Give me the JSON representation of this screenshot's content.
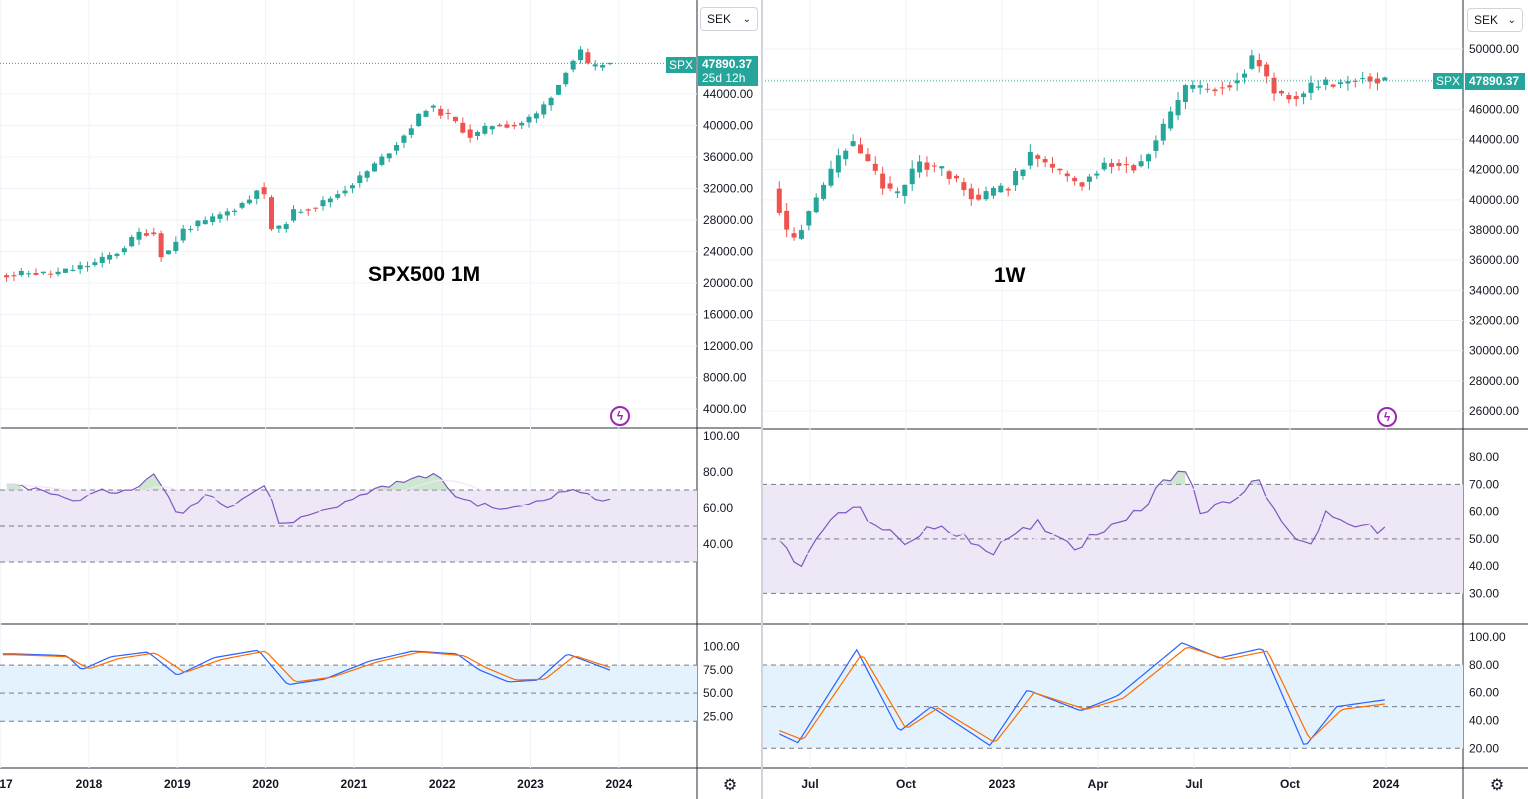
{
  "panels": [
    {
      "id": "monthly",
      "annotation": "SPX500 1M",
      "currency": "SEK",
      "symbol": "SPX",
      "last_price": "47890.37",
      "countdown": "25d 12h",
      "price_ticks": [
        "44000.00",
        "40000.00",
        "36000.00",
        "32000.00",
        "28000.00",
        "24000.00",
        "20000.00",
        "16000.00",
        "12000.00",
        "8000.00",
        "4000.00"
      ],
      "rsi_ticks": [
        "100.00",
        "80.00",
        "60.00",
        "40.00"
      ],
      "stoch_ticks": [
        "100.00",
        "75.00",
        "50.00",
        "25.00"
      ],
      "time_labels": [
        "17",
        "2018",
        "2019",
        "2020",
        "2021",
        "2022",
        "2023",
        "2024"
      ]
    },
    {
      "id": "weekly",
      "annotation": "1W",
      "currency": "SEK",
      "symbol": "SPX",
      "last_price": "47890.37",
      "price_ticks": [
        "50000.00",
        "48000.00",
        "46000.00",
        "44000.00",
        "42000.00",
        "40000.00",
        "38000.00",
        "36000.00",
        "34000.00",
        "32000.00",
        "30000.00",
        "28000.00",
        "26000.00"
      ],
      "rsi_ticks": [
        "80.00",
        "70.00",
        "60.00",
        "50.00",
        "40.00",
        "30.00"
      ],
      "stoch_ticks": [
        "100.00",
        "80.00",
        "60.00",
        "40.00",
        "20.00"
      ],
      "time_labels": [
        "Jul",
        "Oct",
        "2023",
        "Apr",
        "Jul",
        "Oct",
        "2024"
      ]
    }
  ],
  "colors": {
    "up": "#26a69a",
    "down": "#ef5350",
    "rsi_line": "#7e57c2",
    "rsi_band": "#ede7f6",
    "stoch_k": "#2962ff",
    "stoch_d": "#ff6d00",
    "stoch_band": "#e3f2fd",
    "grid": "#f0f3fa",
    "last_price_line": "#26a69a"
  },
  "chart_data": [
    {
      "type": "candlestick",
      "title": "SPX500 1M",
      "currency": "SEK",
      "ylim": [
        0,
        48500
      ],
      "x_axis": [
        "17",
        "2018",
        "2019",
        "2020",
        "2021",
        "2022",
        "2023",
        "2024"
      ],
      "close_path": [
        [
          "2017-04",
          21000
        ],
        [
          "2017-06",
          21300
        ],
        [
          "2017-09",
          21100
        ],
        [
          "2017-12",
          21800
        ],
        [
          "2018-03",
          22600
        ],
        [
          "2018-06",
          24000
        ],
        [
          "2018-09",
          26500
        ],
        [
          "2018-11",
          26300
        ],
        [
          "2018-12",
          23000
        ],
        [
          "2019-03",
          27000
        ],
        [
          "2019-06",
          27800
        ],
        [
          "2019-09",
          29100
        ],
        [
          "2019-12",
          30800
        ],
        [
          "2020-01",
          32500
        ],
        [
          "2020-02",
          30500
        ],
        [
          "2020-03",
          26000
        ],
        [
          "2020-06",
          29200
        ],
        [
          "2020-09",
          29800
        ],
        [
          "2020-12",
          31500
        ],
        [
          "2021-03",
          33500
        ],
        [
          "2021-06",
          36000
        ],
        [
          "2021-09",
          39000
        ],
        [
          "2021-12",
          42500
        ],
        [
          "2022-03",
          41000
        ],
        [
          "2022-06",
          38500
        ],
        [
          "2022-09",
          40200
        ],
        [
          "2022-12",
          40000
        ],
        [
          "2023-03",
          41500
        ],
        [
          "2023-06",
          45500
        ],
        [
          "2023-07",
          47500
        ],
        [
          "2023-09",
          49500
        ],
        [
          "2023-10",
          47000
        ],
        [
          "2023-12",
          47890
        ]
      ],
      "rsi_14": {
        "levels": [
          70,
          50,
          30
        ],
        "ylim": [
          20,
          100
        ],
        "path": [
          [
            "2017-03",
            72
          ],
          [
            "2017-07",
            70
          ],
          [
            "2017-11",
            63
          ],
          [
            "2018-02",
            70
          ],
          [
            "2018-07",
            69
          ],
          [
            "2018-10",
            80
          ],
          [
            "2018-12",
            64
          ],
          [
            "2019-01",
            55
          ],
          [
            "2019-05",
            68
          ],
          [
            "2019-08",
            61
          ],
          [
            "2020-01",
            73
          ],
          [
            "2020-03",
            50
          ],
          [
            "2020-08",
            58
          ],
          [
            "2020-12",
            63
          ],
          [
            "2021-04",
            71
          ],
          [
            "2021-08",
            75
          ],
          [
            "2021-12",
            79
          ],
          [
            "2022-03",
            66
          ],
          [
            "2022-06",
            62
          ],
          [
            "2022-10",
            59
          ],
          [
            "2023-02",
            64
          ],
          [
            "2023-07",
            71
          ],
          [
            "2023-10",
            64
          ],
          [
            "2023-12",
            66
          ]
        ]
      },
      "stochastic": {
        "levels": [
          80,
          50,
          20
        ],
        "ylim": [
          0,
          110
        ],
        "k": [
          [
            "2017-03",
            92
          ],
          [
            "2017-10",
            90
          ],
          [
            "2017-12",
            75
          ],
          [
            "2018-04",
            89
          ],
          [
            "2018-09",
            94
          ],
          [
            "2019-01",
            69
          ],
          [
            "2019-06",
            88
          ],
          [
            "2019-12",
            96
          ],
          [
            "2020-04",
            59
          ],
          [
            "2020-09",
            65
          ],
          [
            "2021-03",
            84
          ],
          [
            "2021-09",
            95
          ],
          [
            "2022-03",
            92
          ],
          [
            "2022-06",
            75
          ],
          [
            "2022-10",
            62
          ],
          [
            "2023-02",
            64
          ],
          [
            "2023-06",
            92
          ],
          [
            "2023-12",
            74
          ]
        ],
        "d": [
          [
            "2017-03",
            91
          ],
          [
            "2017-10",
            89
          ],
          [
            "2018-01",
            76
          ],
          [
            "2018-05",
            87
          ],
          [
            "2018-10",
            93
          ],
          [
            "2019-02",
            72
          ],
          [
            "2019-07",
            86
          ],
          [
            "2020-01",
            95
          ],
          [
            "2020-05",
            62
          ],
          [
            "2020-10",
            67
          ],
          [
            "2021-04",
            83
          ],
          [
            "2021-10",
            94
          ],
          [
            "2022-04",
            90
          ],
          [
            "2022-07",
            77
          ],
          [
            "2022-11",
            64
          ],
          [
            "2023-03",
            65
          ],
          [
            "2023-07",
            90
          ],
          [
            "2023-12",
            77
          ]
        ]
      }
    },
    {
      "type": "candlestick",
      "title": "1W",
      "currency": "SEK",
      "ylim": [
        25000,
        51500
      ],
      "x_axis": [
        "Jul",
        "Oct",
        "2023",
        "Apr",
        "Jul",
        "Oct",
        "2024"
      ],
      "close_path": [
        [
          "2022-06-01",
          41000
        ],
        [
          "2022-06-20",
          37000
        ],
        [
          "2022-07-15",
          40200
        ],
        [
          "2022-08-15",
          44000
        ],
        [
          "2022-09-01",
          42500
        ],
        [
          "2022-09-28",
          40000
        ],
        [
          "2022-10-20",
          42500
        ],
        [
          "2022-11-15",
          41800
        ],
        [
          "2022-12-15",
          40000
        ],
        [
          "2023-01-15",
          41000
        ],
        [
          "2023-02-05",
          43000
        ],
        [
          "2023-03-01",
          41800
        ],
        [
          "2023-03-20",
          41000
        ],
        [
          "2023-04-15",
          42500
        ],
        [
          "2023-05-15",
          42200
        ],
        [
          "2023-06-05",
          44200
        ],
        [
          "2023-07-01",
          47500
        ],
        [
          "2023-07-20",
          47300
        ],
        [
          "2023-08-15",
          47800
        ],
        [
          "2023-09-05",
          49500
        ],
        [
          "2023-09-25",
          47000
        ],
        [
          "2023-10-15",
          46800
        ],
        [
          "2023-11-01",
          47600
        ],
        [
          "2023-11-25",
          47700
        ],
        [
          "2023-12-15",
          48200
        ],
        [
          "2024-01-01",
          47890
        ]
      ],
      "rsi_14": {
        "levels": [
          70,
          50,
          30
        ],
        "ylim": [
          25,
          83
        ],
        "path": [
          [
            "2022-05-25",
            55
          ],
          [
            "2022-06-20",
            38
          ],
          [
            "2022-07-15",
            55
          ],
          [
            "2022-08-12",
            62
          ],
          [
            "2022-09-01",
            56
          ],
          [
            "2022-09-30",
            48
          ],
          [
            "2022-10-20",
            54
          ],
          [
            "2022-11-25",
            52
          ],
          [
            "2022-12-20",
            45
          ],
          [
            "2023-01-15",
            51
          ],
          [
            "2023-02-05",
            56
          ],
          [
            "2023-03-10",
            47
          ],
          [
            "2023-04-15",
            56
          ],
          [
            "2023-05-15",
            62
          ],
          [
            "2023-06-05",
            72
          ],
          [
            "2023-06-28",
            76
          ],
          [
            "2023-07-05",
            59
          ],
          [
            "2023-08-10",
            66
          ],
          [
            "2023-09-01",
            71
          ],
          [
            "2023-09-30",
            52
          ],
          [
            "2023-10-25",
            48
          ],
          [
            "2023-11-01",
            60
          ],
          [
            "2023-12-01",
            56
          ],
          [
            "2023-12-20",
            53
          ],
          [
            "2024-01-01",
            54
          ]
        ]
      },
      "stochastic": {
        "levels": [
          80,
          50,
          20
        ],
        "ylim": [
          13,
          103
        ],
        "k": [
          [
            "2022-05-25",
            33
          ],
          [
            "2022-06-20",
            24
          ],
          [
            "2022-08-15",
            91
          ],
          [
            "2022-09-25",
            32
          ],
          [
            "2022-10-25",
            50
          ],
          [
            "2022-12-20",
            22
          ],
          [
            "2023-01-25",
            62
          ],
          [
            "2023-03-15",
            47
          ],
          [
            "2023-04-20",
            58
          ],
          [
            "2023-06-20",
            96
          ],
          [
            "2023-07-25",
            85
          ],
          [
            "2023-09-05",
            92
          ],
          [
            "2023-10-15",
            21
          ],
          [
            "2023-11-15",
            50
          ],
          [
            "2024-01-01",
            55
          ]
        ],
        "d": [
          [
            "2022-05-25",
            35
          ],
          [
            "2022-06-25",
            26
          ],
          [
            "2022-08-20",
            88
          ],
          [
            "2022-10-01",
            34
          ],
          [
            "2022-11-01",
            49
          ],
          [
            "2022-12-25",
            24
          ],
          [
            "2023-02-01",
            60
          ],
          [
            "2023-03-20",
            48
          ],
          [
            "2023-04-25",
            56
          ],
          [
            "2023-06-25",
            93
          ],
          [
            "2023-08-01",
            84
          ],
          [
            "2023-09-10",
            90
          ],
          [
            "2023-10-20",
            26
          ],
          [
            "2023-11-20",
            48
          ],
          [
            "2024-01-01",
            52
          ]
        ]
      }
    }
  ]
}
